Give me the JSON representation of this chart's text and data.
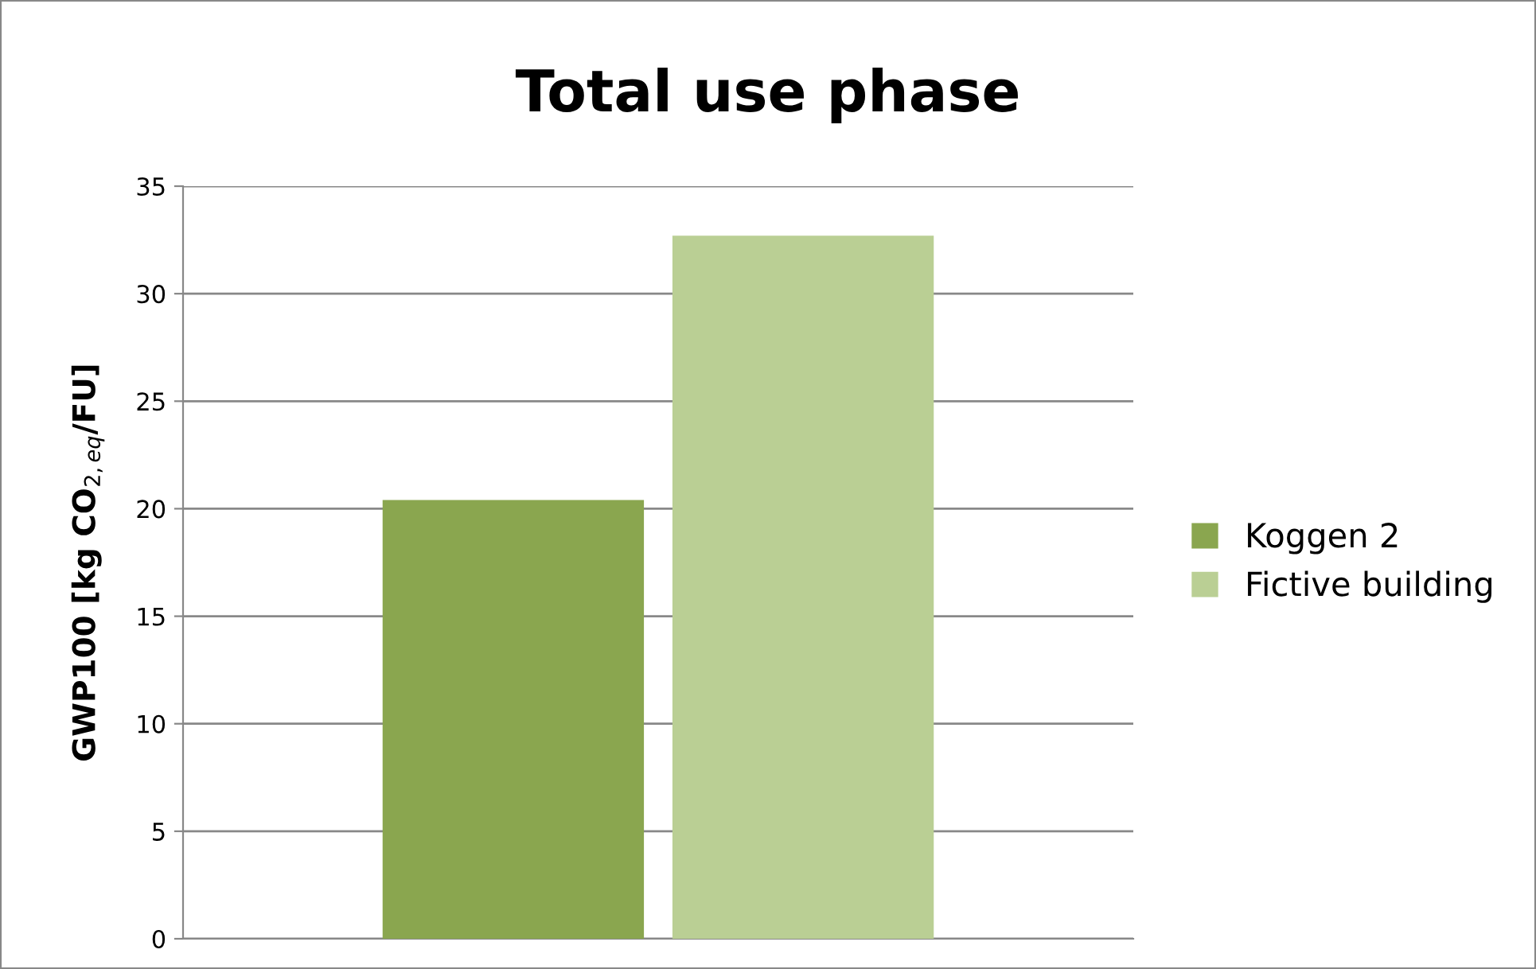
{
  "chart_data": {
    "type": "bar",
    "title": "Total use phase",
    "ylabel": "GWP100 [kg CO$_{2,eq}$/FU]",
    "categories": [
      null
    ],
    "series": [
      {
        "name": "Koggen 2",
        "color": "#8aa64f",
        "values": [
          20.4
        ]
      },
      {
        "name": "Fictive building",
        "color": "#bacf94",
        "values": [
          32.7
        ]
      }
    ],
    "ylim": [
      0,
      35
    ],
    "yticks": [
      0,
      5,
      10,
      15,
      20,
      25,
      30,
      35
    ],
    "grid": "y",
    "legend": "right"
  }
}
